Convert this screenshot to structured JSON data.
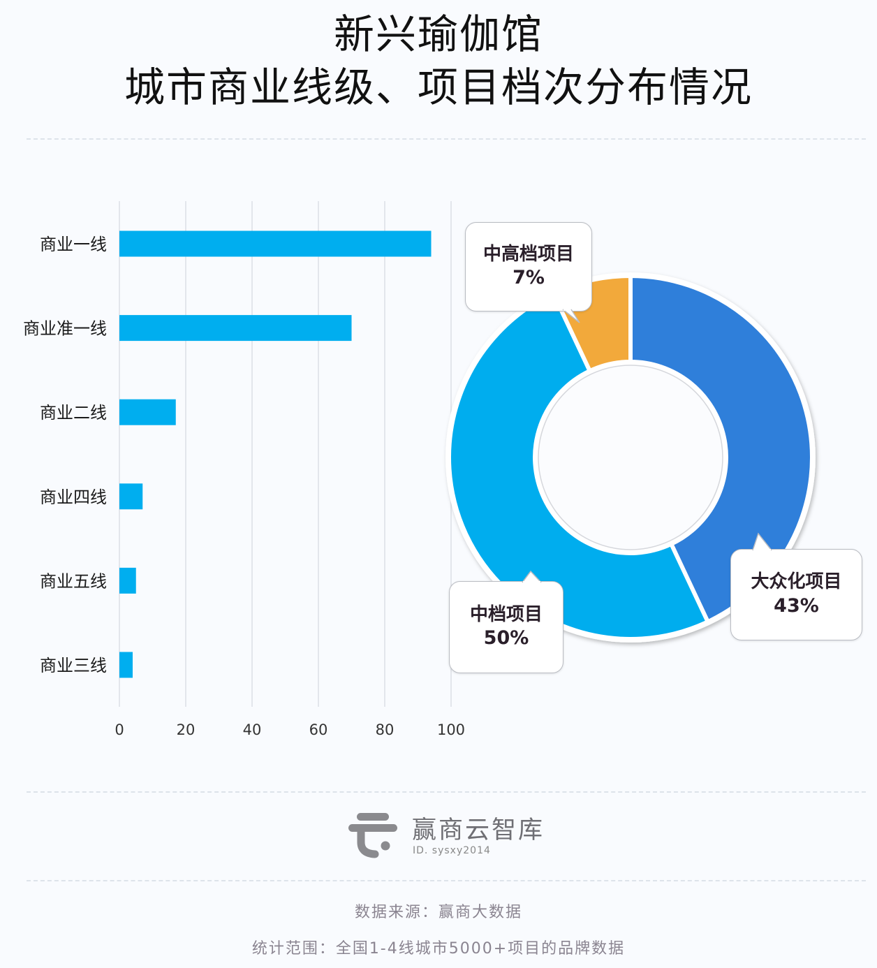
{
  "title": {
    "line1": "新兴瑜伽馆",
    "line2": "城市商业线级、项目档次分布情况"
  },
  "colors": {
    "bar": "#00AEEF",
    "mass": "#2F7FDA",
    "mid": "#00ADEE",
    "midhigh": "#F2A93B",
    "grid": "#dcdfe5",
    "logo": "#8a8a8e"
  },
  "chart_data": [
    {
      "type": "bar",
      "orientation": "horizontal",
      "title": "城市商业线级",
      "categories": [
        "商业一线",
        "商业准一线",
        "商业二线",
        "商业四线",
        "商业五线",
        "商业三线"
      ],
      "values": [
        94,
        70,
        17,
        7,
        5,
        4
      ],
      "xlabel": "",
      "ylabel": "",
      "xlim": [
        0,
        100
      ],
      "xticks": [
        0,
        20,
        40,
        60,
        80,
        100
      ],
      "grid": true,
      "legend": null
    },
    {
      "type": "pie",
      "donut": true,
      "title": "项目档次分布",
      "start_angle": "12 o'clock, clockwise",
      "slices": [
        {
          "label": "大众化项目",
          "value": 43,
          "display": "43%",
          "color": "#2F7FDA"
        },
        {
          "label": "中档项目",
          "value": 50,
          "display": "50%",
          "color": "#00ADEE"
        },
        {
          "label": "中高档项目",
          "value": 7,
          "display": "7%",
          "color": "#F2A93B"
        }
      ]
    }
  ],
  "callouts": {
    "midhigh": {
      "name": "中高档项目",
      "pct": "7%"
    },
    "mid": {
      "name": "中档项目",
      "pct": "50%"
    },
    "mass": {
      "name": "大众化项目",
      "pct": "43%"
    }
  },
  "brand": {
    "name": "赢商云智库",
    "id": "ID. sysxy2014",
    "logo_icon": "winshang-logo-icon"
  },
  "footer": {
    "source": "数据来源：赢商大数据",
    "scope": "统计范围：全国1-4线城市5000+项目的品牌数据"
  }
}
